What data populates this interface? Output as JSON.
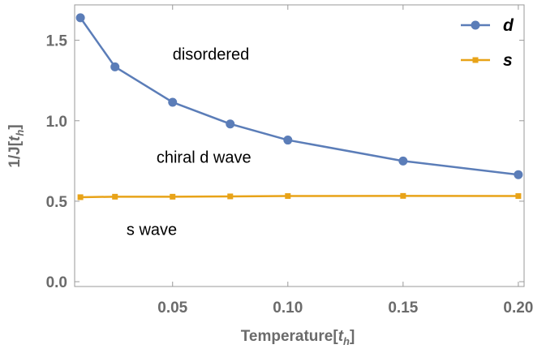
{
  "colors": {
    "d": "#5b7db8",
    "s": "#e8a318",
    "frame": "#9a9a9a",
    "tick_text": "#6b6b6b"
  },
  "chart_data": {
    "type": "line",
    "xlabel_main": "Temperature",
    "xlabel_unit_open": "[",
    "xlabel_unit_base": "t",
    "xlabel_unit_sub": "h",
    "xlabel_unit_close": "]",
    "ylabel_main": "1/J",
    "ylabel_unit_open": "[",
    "ylabel_unit_base": "t",
    "ylabel_unit_sub": "h",
    "ylabel_unit_close": "]",
    "xlim": [
      0.0075,
      0.2025
    ],
    "ylim": [
      -0.03,
      1.72
    ],
    "x_ticks": [
      0.05,
      0.1,
      0.15,
      0.2
    ],
    "x_tick_labels": [
      "0.05",
      "0.10",
      "0.15",
      "0.20"
    ],
    "y_ticks": [
      0.0,
      0.5,
      1.0,
      1.5
    ],
    "y_tick_labels": [
      "0.0",
      "0.5",
      "1.0",
      "1.5"
    ],
    "legend_position": "top-right",
    "series": [
      {
        "name": "d",
        "marker": "circle",
        "color": "#5b7db8",
        "x": [
          0.01,
          0.025,
          0.05,
          0.075,
          0.1,
          0.15,
          0.2
        ],
        "y": [
          1.64,
          1.335,
          1.115,
          0.98,
          0.88,
          0.75,
          0.665
        ]
      },
      {
        "name": "s",
        "marker": "square",
        "color": "#e8a318",
        "x": [
          0.01,
          0.025,
          0.05,
          0.075,
          0.1,
          0.15,
          0.2
        ],
        "y": [
          0.525,
          0.528,
          0.528,
          0.53,
          0.532,
          0.533,
          0.532
        ]
      }
    ],
    "annotations": [
      {
        "text": "disordered",
        "x": 0.05,
        "y": 1.38
      },
      {
        "text": "chiral d wave",
        "x": 0.043,
        "y": 0.74
      },
      {
        "text": "s wave",
        "x": 0.03,
        "y": 0.29
      }
    ]
  }
}
